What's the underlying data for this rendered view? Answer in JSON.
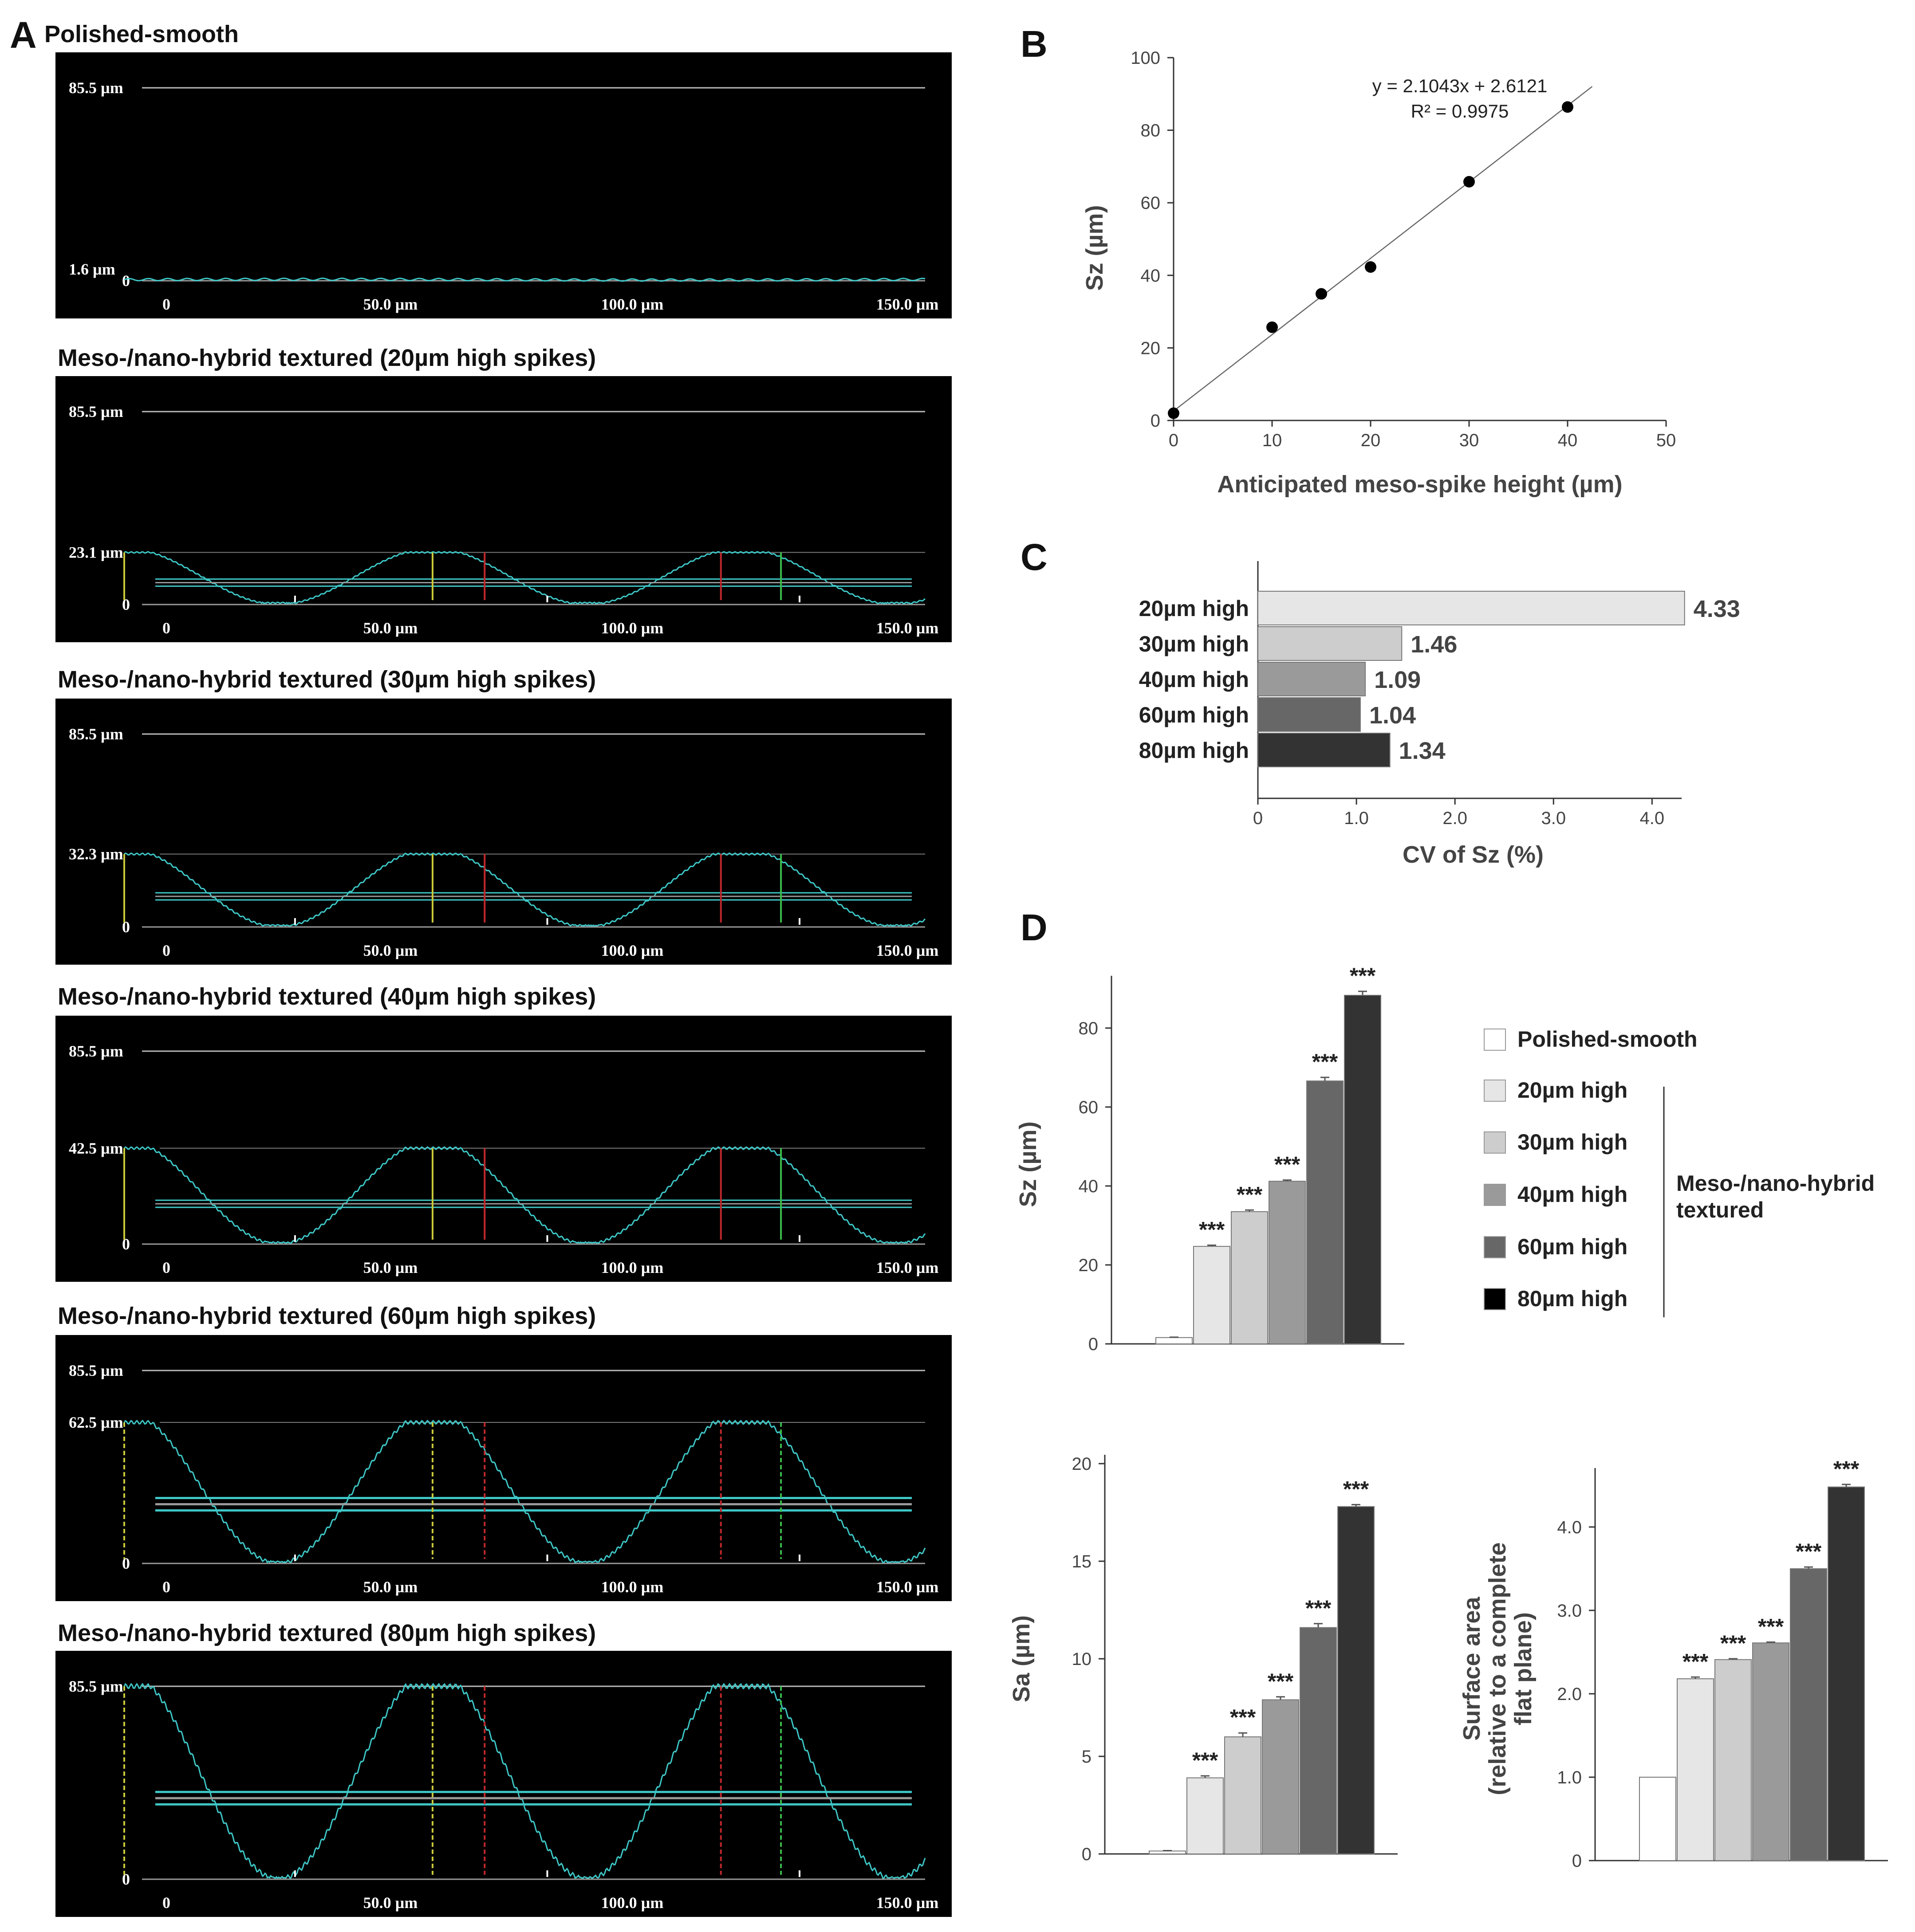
{
  "panels": {
    "A": "A",
    "B": "B",
    "C": "C",
    "D": "D"
  },
  "profiles": {
    "x_ticks": [
      "0",
      "50.0 µm",
      "100.0 µm",
      "150.0 µm"
    ],
    "x_range_um": [
      0,
      150
    ],
    "top_label": "85.5  µm",
    "zero_label": "0",
    "items": [
      {
        "title": "Polished-smooth",
        "height_label": "1.6 µm",
        "height_um": 1.6
      },
      {
        "title": "Meso-/nano-hybrid textured (20µm high spikes)",
        "height_label": "23.1 µm",
        "height_um": 23.1
      },
      {
        "title": "Meso-/nano-hybrid textured (30µm high spikes)",
        "height_label": "32.3 µm",
        "height_um": 32.3
      },
      {
        "title": "Meso-/nano-hybrid textured (40µm high spikes)",
        "height_label": "42.5  µm",
        "height_um": 42.5
      },
      {
        "title": "Meso-/nano-hybrid textured (60µm high spikes)",
        "height_label": "62.5  µm",
        "height_um": 62.5
      },
      {
        "title": "Meso-/nano-hybrid textured (80µm high spikes)",
        "height_label": "85.5  µm",
        "height_um": 85.5
      }
    ]
  },
  "chart_data": [
    {
      "id": "B",
      "type": "scatter",
      "x": [
        0,
        10,
        15,
        20,
        30,
        40
      ],
      "y": [
        2,
        25.7,
        34.9,
        42.3,
        65.8,
        86.4
      ],
      "fit": {
        "slope": 2.1043,
        "intercept": 2.6121
      },
      "annotation_line1": "y = 2.1043x + 2.6121",
      "annotation_line2": "R² = 0.9975",
      "xlabel": "Anticipated meso-spike height (µm)",
      "ylabel": "Sz (µm)",
      "xlim": [
        0,
        50
      ],
      "ylim": [
        0,
        100
      ],
      "xticks": [
        0,
        10,
        20,
        30,
        40,
        50
      ],
      "yticks": [
        0,
        20,
        40,
        60,
        80,
        100
      ]
    },
    {
      "id": "C",
      "type": "bar",
      "orientation": "horizontal",
      "categories": [
        "20µm high",
        "30µm high",
        "40µm high",
        "60µm high",
        "80µm high"
      ],
      "values": [
        4.33,
        1.46,
        1.09,
        1.04,
        1.34
      ],
      "value_labels": [
        "4.33",
        "1.46",
        "1.09",
        "1.04",
        "1.34"
      ],
      "colors": [
        "#e6e6e6",
        "#cdcdcd",
        "#9a9a9a",
        "#676767",
        "#333333"
      ],
      "xlabel": "CV of Sz (%)",
      "xlim": [
        0,
        4.3
      ],
      "xticks": [
        "0",
        "1.0",
        "2.0",
        "3.0",
        "4.0"
      ]
    },
    {
      "id": "D-Sz",
      "type": "bar",
      "categories": [
        "Polished-smooth",
        "20µm high",
        "30µm high",
        "40µm high",
        "60µm high",
        "80µm high"
      ],
      "values": [
        1.6,
        24.7,
        33.5,
        41.2,
        66.6,
        88.3
      ],
      "errors": [
        0.1,
        0.3,
        0.4,
        0.3,
        0.9,
        1.0
      ],
      "significance": [
        "",
        "***",
        "***",
        "***",
        "***",
        "***"
      ],
      "ylabel": "Sz (µm)",
      "ylim": [
        0,
        91
      ],
      "yticks": [
        0,
        20,
        40,
        60,
        80
      ]
    },
    {
      "id": "D-Sa",
      "type": "bar",
      "categories": [
        "Polished-smooth",
        "20µm high",
        "30µm high",
        "40µm high",
        "60µm high",
        "80µm high"
      ],
      "values": [
        0.15,
        3.9,
        6.0,
        7.9,
        11.6,
        17.8
      ],
      "errors": [
        0.02,
        0.1,
        0.2,
        0.15,
        0.2,
        0.1
      ],
      "significance": [
        "",
        "***",
        "***",
        "***",
        "***",
        "***"
      ],
      "ylabel": "Sa (µm)",
      "ylim": [
        0,
        20
      ],
      "yticks": [
        0,
        5,
        10,
        15,
        20
      ]
    },
    {
      "id": "D-SurfaceArea",
      "type": "bar",
      "categories": [
        "Polished-smooth",
        "20µm high",
        "30µm high",
        "40µm high",
        "60µm high",
        "80µm high"
      ],
      "values": [
        1.0,
        2.18,
        2.41,
        2.61,
        3.5,
        4.48
      ],
      "errors": [
        0,
        0.02,
        0.01,
        0.01,
        0.02,
        0.03
      ],
      "significance": [
        "",
        "***",
        "***",
        "***",
        "***",
        "***"
      ],
      "ylabel_line1": "Surface area",
      "ylabel_line2": "(relative to a complete",
      "ylabel_line3": "flat plane)",
      "ylim": [
        0,
        4.6
      ],
      "yticks": [
        "0",
        "1.0",
        "2.0",
        "3.0",
        "4.0"
      ]
    }
  ],
  "legend": {
    "items": [
      {
        "label": "Polished-smooth",
        "color": "#ffffff"
      },
      {
        "label": "20µm high",
        "color": "#e6e6e6"
      },
      {
        "label": "30µm high",
        "color": "#cdcdcd"
      },
      {
        "label": "40µm high",
        "color": "#9a9a9a"
      },
      {
        "label": "60µm high",
        "color": "#676767"
      },
      {
        "label": "80µm high",
        "color": "#000000"
      }
    ],
    "group_label_line1": "Meso-/nano-hybrid",
    "group_label_line2": "textured"
  },
  "bar_colors": [
    "#ffffff",
    "#e6e6e6",
    "#cdcdcd",
    "#9a9a9a",
    "#676767",
    "#333333"
  ],
  "colors": {
    "profile_bg": "#000000",
    "profile_line": "#3fc7c7",
    "marker_yellow": "#c9c93a",
    "marker_red": "#c0282c",
    "marker_green": "#3bbd4b"
  }
}
